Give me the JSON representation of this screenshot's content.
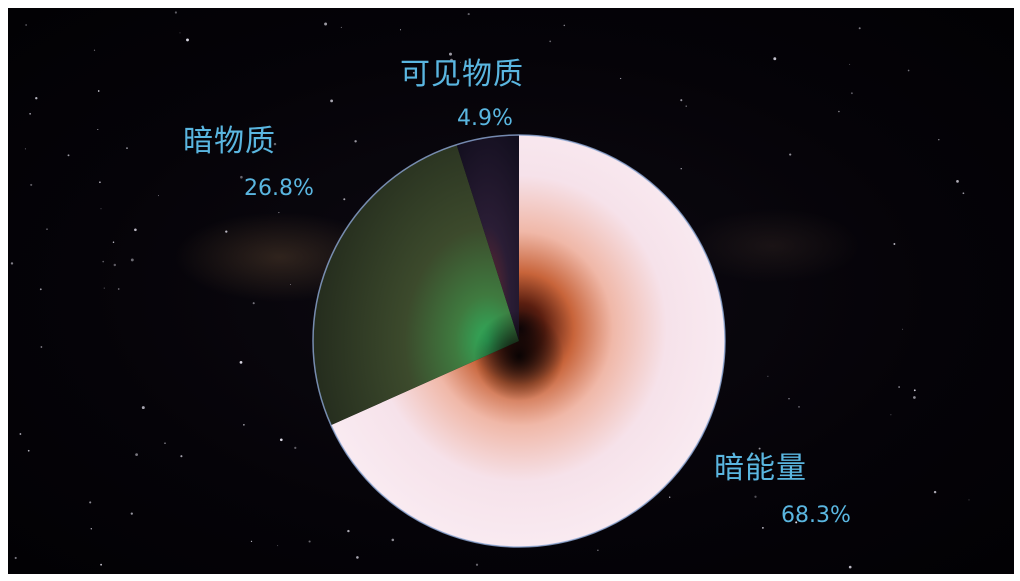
{
  "chart_data": {
    "type": "pie",
    "slices": [
      {
        "label": "暗能量",
        "value": 68.3,
        "value_label": "68.3%",
        "color": "#f3dde4"
      },
      {
        "label": "暗物质",
        "value": 26.8,
        "value_label": "26.8%",
        "color": "#2e3b22"
      },
      {
        "label": "可见物质",
        "value": 4.9,
        "value_label": "4.9%",
        "color": "#1b1526"
      }
    ],
    "title": "",
    "legend": "none"
  }
}
